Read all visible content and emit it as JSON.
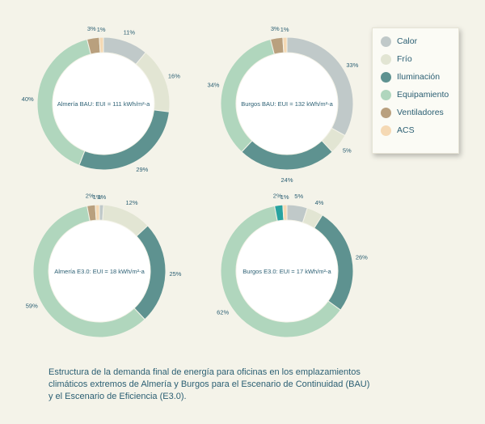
{
  "legend": {
    "items": [
      {
        "label": "Calor",
        "color": "#c0c9c9"
      },
      {
        "label": "Frío",
        "color": "#e2e5d3"
      },
      {
        "label": "Iluminación",
        "color": "#5e9290"
      },
      {
        "label": "Equipamiento",
        "color": "#b0d6bd"
      },
      {
        "label": "Ventiladores",
        "color": "#b9a07e"
      },
      {
        "label": "ACS",
        "color": "#f5d9b4"
      }
    ]
  },
  "chart_data": [
    {
      "type": "donut",
      "center_label": "Almería BAU: EUI = 111 kWh/m²-a",
      "categories": [
        "Calor",
        "Frío",
        "Iluminación",
        "Equipamiento",
        "Ventiladores",
        "ACS"
      ],
      "values": [
        11,
        16,
        29,
        40,
        3,
        1
      ],
      "data_labels": [
        "11%",
        "16%",
        "29%",
        "40%",
        "3%",
        "1%"
      ]
    },
    {
      "type": "donut",
      "center_label": "Burgos BAU: EUI = 132 kWh/m²-a",
      "categories": [
        "Calor",
        "Frío",
        "Iluminación",
        "Equipamiento",
        "Ventiladores",
        "ACS"
      ],
      "values": [
        33,
        5,
        24,
        34,
        3,
        1
      ],
      "data_labels": [
        "33%",
        "5%",
        "24%",
        "34%",
        "3%",
        "1%"
      ]
    },
    {
      "type": "donut",
      "center_label": "Almería E3.0: EUI = 18 kWh/m²-a",
      "categories": [
        "Calor",
        "Frío",
        "Iluminación",
        "Equipamiento",
        "Ventiladores",
        "ACS"
      ],
      "values": [
        1,
        12,
        25,
        59,
        2,
        1
      ],
      "data_labels": [
        "1%",
        "12%",
        "25%",
        "59%",
        "2%",
        "1%"
      ]
    },
    {
      "type": "donut",
      "center_label": "Burgos E3.0: EUI = 17 kWh/m²-a",
      "categories": [
        "Calor",
        "Frío",
        "Iluminación",
        "Equipamiento",
        "Ventiladores",
        "ACS"
      ],
      "values": [
        5,
        4,
        26,
        62,
        2,
        1
      ],
      "data_labels": [
        "5%",
        "4%",
        "26%",
        "62%",
        "2%",
        "1%"
      ],
      "colors_override": {
        "Ventiladores": "#27a3a0"
      }
    }
  ],
  "caption": {
    "line1": "Estructura de la demanda final de energía para oficinas en los emplazamientos",
    "line2": "climáticos extremos de Almería y Burgos para el Escenario de Continuidad (BAU)",
    "line3": "y el Escenario de Eficiencia (E3.0)."
  }
}
